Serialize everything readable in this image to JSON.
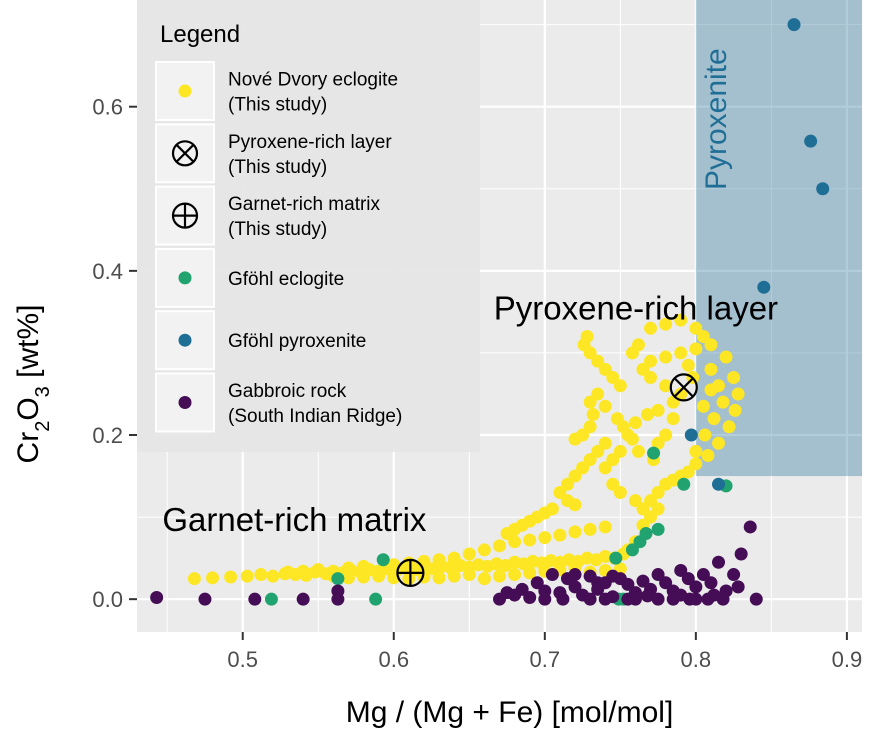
{
  "chart_data": {
    "type": "scatter",
    "xlabel": "Mg / (Mg + Fe) [mol/mol]",
    "ylabel_parts": [
      "Cr",
      "2",
      "O",
      "3",
      " [wt%]"
    ],
    "xlim": [
      0.43,
      0.91
    ],
    "ylim": [
      -0.04,
      0.73
    ],
    "x_ticks": [
      0.5,
      0.6,
      0.7,
      0.8,
      0.9
    ],
    "x_tick_labels": [
      "0.5",
      "0.6",
      "0.7",
      "0.8",
      "0.9"
    ],
    "y_ticks": [
      0.0,
      0.2,
      0.4,
      0.6
    ],
    "y_tick_labels": [
      "0.0",
      "0.2",
      "0.4",
      "0.6"
    ],
    "grid": true,
    "legend_position": "top-left",
    "legend": {
      "title": "Legend",
      "entries": [
        {
          "lines": [
            "Nové Dvory eclogite",
            "(This study)"
          ],
          "marker": "dot",
          "color": "#fde725"
        },
        {
          "lines": [
            "Pyroxene-rich layer",
            "(This study)"
          ],
          "marker": "circle-x",
          "color": "#000000"
        },
        {
          "lines": [
            "Garnet-rich matrix",
            "(This study)"
          ],
          "marker": "circle-plus",
          "color": "#000000"
        },
        {
          "lines": [
            "Gföhl eclogite"
          ],
          "marker": "dot",
          "color": "#21a36f"
        },
        {
          "lines": [
            "Gföhl pyroxenite"
          ],
          "marker": "dot",
          "color": "#1f6e96"
        },
        {
          "lines": [
            "Gabbroic rock",
            "(South Indian Ridge)"
          ],
          "marker": "dot",
          "color": "#440d55"
        }
      ]
    },
    "region": {
      "label": "Pyroxenite",
      "x": [
        0.8,
        0.91
      ],
      "y": [
        0.15,
        0.73
      ],
      "color": "#1f6e96"
    },
    "annotations": [
      {
        "text": "Pyroxene-rich layer",
        "x": 0.792,
        "y": 0.258,
        "marker": "circle-x"
      },
      {
        "text": "Garnet-rich matrix",
        "x": 0.611,
        "y": 0.032,
        "marker": "circle-plus"
      }
    ],
    "series": [
      {
        "name": "Nové Dvory eclogite (This study)",
        "color": "#fde725",
        "points": [
          [
            0.468,
            0.025
          ],
          [
            0.48,
            0.026
          ],
          [
            0.492,
            0.027
          ],
          [
            0.503,
            0.028
          ],
          [
            0.512,
            0.03
          ],
          [
            0.52,
            0.028
          ],
          [
            0.528,
            0.031
          ],
          [
            0.535,
            0.03
          ],
          [
            0.542,
            0.029
          ],
          [
            0.548,
            0.033
          ],
          [
            0.555,
            0.031
          ],
          [
            0.56,
            0.034
          ],
          [
            0.566,
            0.032
          ],
          [
            0.572,
            0.035
          ],
          [
            0.578,
            0.033
          ],
          [
            0.584,
            0.036
          ],
          [
            0.59,
            0.034
          ],
          [
            0.596,
            0.037
          ],
          [
            0.602,
            0.035
          ],
          [
            0.608,
            0.038
          ],
          [
            0.614,
            0.036
          ],
          [
            0.62,
            0.039
          ],
          [
            0.626,
            0.037
          ],
          [
            0.632,
            0.04
          ],
          [
            0.638,
            0.038
          ],
          [
            0.644,
            0.041
          ],
          [
            0.65,
            0.039
          ],
          [
            0.656,
            0.042
          ],
          [
            0.662,
            0.04
          ],
          [
            0.668,
            0.043
          ],
          [
            0.674,
            0.041
          ],
          [
            0.68,
            0.045
          ],
          [
            0.686,
            0.043
          ],
          [
            0.692,
            0.046
          ],
          [
            0.698,
            0.044
          ],
          [
            0.704,
            0.047
          ],
          [
            0.71,
            0.045
          ],
          [
            0.716,
            0.048
          ],
          [
            0.722,
            0.046
          ],
          [
            0.728,
            0.05
          ],
          [
            0.734,
            0.048
          ],
          [
            0.74,
            0.052
          ],
          [
            0.746,
            0.05
          ],
          [
            0.752,
            0.055
          ],
          [
            0.64,
            0.05
          ],
          [
            0.65,
            0.055
          ],
          [
            0.66,
            0.06
          ],
          [
            0.67,
            0.065
          ],
          [
            0.68,
            0.07
          ],
          [
            0.69,
            0.072
          ],
          [
            0.7,
            0.075
          ],
          [
            0.71,
            0.078
          ],
          [
            0.72,
            0.082
          ],
          [
            0.73,
            0.085
          ],
          [
            0.74,
            0.088
          ],
          [
            0.66,
            0.025
          ],
          [
            0.67,
            0.028
          ],
          [
            0.68,
            0.03
          ],
          [
            0.69,
            0.032
          ],
          [
            0.7,
            0.034
          ],
          [
            0.71,
            0.036
          ],
          [
            0.72,
            0.038
          ],
          [
            0.73,
            0.033
          ],
          [
            0.74,
            0.035
          ],
          [
            0.75,
            0.037
          ],
          [
            0.755,
            0.06
          ],
          [
            0.76,
            0.07
          ],
          [
            0.765,
            0.09
          ],
          [
            0.77,
            0.1
          ],
          [
            0.775,
            0.11
          ],
          [
            0.76,
            0.12
          ],
          [
            0.75,
            0.13
          ],
          [
            0.745,
            0.14
          ],
          [
            0.74,
            0.16
          ],
          [
            0.745,
            0.17
          ],
          [
            0.75,
            0.18
          ],
          [
            0.755,
            0.2
          ],
          [
            0.76,
            0.215
          ],
          [
            0.768,
            0.225
          ],
          [
            0.775,
            0.23
          ],
          [
            0.785,
            0.24
          ],
          [
            0.79,
            0.25
          ],
          [
            0.78,
            0.26
          ],
          [
            0.77,
            0.27
          ],
          [
            0.765,
            0.28
          ],
          [
            0.77,
            0.29
          ],
          [
            0.78,
            0.295
          ],
          [
            0.79,
            0.3
          ],
          [
            0.8,
            0.305
          ],
          [
            0.81,
            0.31
          ],
          [
            0.805,
            0.32
          ],
          [
            0.8,
            0.33
          ],
          [
            0.79,
            0.34
          ],
          [
            0.78,
            0.335
          ],
          [
            0.77,
            0.33
          ],
          [
            0.82,
            0.295
          ],
          [
            0.825,
            0.27
          ],
          [
            0.828,
            0.25
          ],
          [
            0.826,
            0.23
          ],
          [
            0.822,
            0.21
          ],
          [
            0.815,
            0.19
          ],
          [
            0.808,
            0.175
          ],
          [
            0.8,
            0.165
          ],
          [
            0.795,
            0.155
          ],
          [
            0.79,
            0.15
          ],
          [
            0.785,
            0.145
          ],
          [
            0.78,
            0.14
          ],
          [
            0.775,
            0.13
          ],
          [
            0.77,
            0.12
          ],
          [
            0.765,
            0.11
          ],
          [
            0.726,
            0.31
          ],
          [
            0.73,
            0.3
          ],
          [
            0.728,
            0.32
          ],
          [
            0.735,
            0.29
          ],
          [
            0.74,
            0.28
          ],
          [
            0.745,
            0.27
          ],
          [
            0.75,
            0.26
          ],
          [
            0.735,
            0.25
          ],
          [
            0.73,
            0.24
          ],
          [
            0.74,
            0.235
          ],
          [
            0.71,
            0.13
          ],
          [
            0.715,
            0.12
          ],
          [
            0.72,
            0.115
          ],
          [
            0.705,
            0.11
          ],
          [
            0.7,
            0.105
          ],
          [
            0.695,
            0.1
          ],
          [
            0.69,
            0.095
          ],
          [
            0.685,
            0.09
          ],
          [
            0.68,
            0.085
          ],
          [
            0.675,
            0.08
          ],
          [
            0.735,
            0.18
          ],
          [
            0.74,
            0.19
          ],
          [
            0.73,
            0.17
          ],
          [
            0.725,
            0.16
          ],
          [
            0.72,
            0.15
          ],
          [
            0.715,
            0.14
          ],
          [
            0.73,
            0.21
          ],
          [
            0.725,
            0.2
          ],
          [
            0.72,
            0.195
          ],
          [
            0.732,
            0.225
          ],
          [
            0.58,
            0.04
          ],
          [
            0.57,
            0.038
          ],
          [
            0.55,
            0.036
          ],
          [
            0.54,
            0.034
          ],
          [
            0.53,
            0.033
          ],
          [
            0.6,
            0.042
          ],
          [
            0.61,
            0.044
          ],
          [
            0.62,
            0.046
          ],
          [
            0.63,
            0.048
          ],
          [
            0.64,
            0.045
          ],
          [
            0.56,
            0.028
          ],
          [
            0.57,
            0.026
          ],
          [
            0.58,
            0.027
          ],
          [
            0.59,
            0.028
          ],
          [
            0.6,
            0.026
          ],
          [
            0.61,
            0.025
          ],
          [
            0.62,
            0.027
          ],
          [
            0.63,
            0.026
          ],
          [
            0.64,
            0.028
          ],
          [
            0.65,
            0.03
          ],
          [
            0.762,
            0.18
          ],
          [
            0.758,
            0.195
          ],
          [
            0.752,
            0.21
          ],
          [
            0.748,
            0.22
          ],
          [
            0.81,
            0.28
          ],
          [
            0.815,
            0.26
          ],
          [
            0.818,
            0.24
          ],
          [
            0.812,
            0.22
          ],
          [
            0.806,
            0.2
          ],
          [
            0.8,
            0.18
          ],
          [
            0.758,
            0.3
          ],
          [
            0.762,
            0.31
          ],
          [
            0.798,
            0.27
          ],
          [
            0.795,
            0.285
          ],
          [
            0.81,
            0.255
          ],
          [
            0.805,
            0.235
          ],
          [
            0.785,
            0.22
          ],
          [
            0.78,
            0.2
          ],
          [
            0.775,
            0.19
          ],
          [
            0.772,
            0.17
          ]
        ]
      },
      {
        "name": "Gföhl eclogite",
        "color": "#21a36f",
        "points": [
          [
            0.519,
            0.0
          ],
          [
            0.563,
            0.025
          ],
          [
            0.588,
            0.0
          ],
          [
            0.593,
            0.048
          ],
          [
            0.747,
            0.05
          ],
          [
            0.749,
            0.0
          ],
          [
            0.752,
            0.0
          ],
          [
            0.758,
            0.06
          ],
          [
            0.763,
            0.07
          ],
          [
            0.767,
            0.08
          ],
          [
            0.772,
            0.178
          ],
          [
            0.792,
            0.14
          ],
          [
            0.82,
            0.138
          ],
          [
            0.775,
            0.085
          ]
        ]
      },
      {
        "name": "Gföhl pyroxenite",
        "color": "#1f6e96",
        "points": [
          [
            0.865,
            0.7
          ],
          [
            0.876,
            0.558
          ],
          [
            0.884,
            0.5
          ],
          [
            0.845,
            0.38
          ],
          [
            0.797,
            0.2
          ],
          [
            0.815,
            0.14
          ]
        ]
      },
      {
        "name": "Gabbroic rock (South Indian Ridge)",
        "color": "#440d55",
        "points": [
          [
            0.443,
            0.002
          ],
          [
            0.475,
            0.0
          ],
          [
            0.508,
            0.0
          ],
          [
            0.54,
            0.0
          ],
          [
            0.563,
            0.01
          ],
          [
            0.563,
            0.0
          ],
          [
            0.67,
            0.0
          ],
          [
            0.68,
            0.005
          ],
          [
            0.69,
            0.002
          ],
          [
            0.7,
            0.01
          ],
          [
            0.71,
            0.008
          ],
          [
            0.72,
            0.015
          ],
          [
            0.725,
            0.005
          ],
          [
            0.73,
            0.0
          ],
          [
            0.735,
            0.012
          ],
          [
            0.74,
            0.02
          ],
          [
            0.745,
            0.003
          ],
          [
            0.75,
            0.025
          ],
          [
            0.755,
            0.018
          ],
          [
            0.76,
            0.008
          ],
          [
            0.765,
            0.022
          ],
          [
            0.77,
            0.012
          ],
          [
            0.775,
            0.03
          ],
          [
            0.78,
            0.02
          ],
          [
            0.785,
            0.01
          ],
          [
            0.79,
            0.035
          ],
          [
            0.795,
            0.025
          ],
          [
            0.8,
            0.015
          ],
          [
            0.805,
            0.03
          ],
          [
            0.81,
            0.02
          ],
          [
            0.815,
            0.045
          ],
          [
            0.82,
            0.01
          ],
          [
            0.825,
            0.03
          ],
          [
            0.83,
            0.055
          ],
          [
            0.836,
            0.088
          ],
          [
            0.84,
            0.0
          ],
          [
            0.828,
            0.015
          ],
          [
            0.812,
            0.005
          ],
          [
            0.8,
            0.0
          ],
          [
            0.705,
            0.03
          ],
          [
            0.715,
            0.025
          ],
          [
            0.695,
            0.02
          ],
          [
            0.685,
            0.012
          ],
          [
            0.675,
            0.008
          ],
          [
            0.72,
            0.03
          ],
          [
            0.775,
            0.0
          ],
          [
            0.785,
            0.0
          ],
          [
            0.796,
            0.0
          ],
          [
            0.76,
            0.0
          ],
          [
            0.74,
            0.0
          ],
          [
            0.73,
            0.028
          ],
          [
            0.712,
            0.0
          ],
          [
            0.7,
            0.0
          ],
          [
            0.808,
            0.0
          ],
          [
            0.818,
            0.0
          ],
          [
            0.79,
            0.005
          ],
          [
            0.768,
            0.004
          ],
          [
            0.755,
            0.0
          ],
          [
            0.745,
            0.028
          ],
          [
            0.735,
            0.02
          ]
        ]
      }
    ]
  }
}
